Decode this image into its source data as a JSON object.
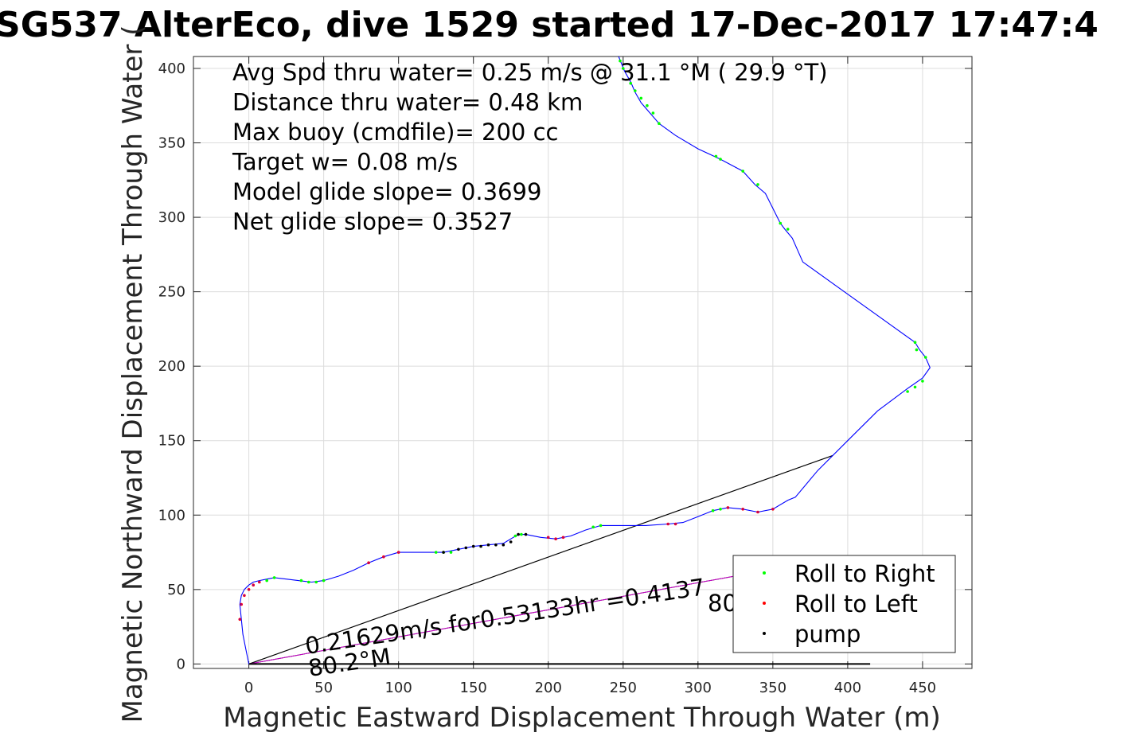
{
  "chart_data": {
    "type": "line",
    "title": "SG537 AlterEco, dive 1529 started 17-Dec-2017 17:47:4",
    "xlabel": "Magnetic Eastward Displacement Through Water (m)",
    "ylabel": "Magnetic Northward Displacement Through Water (",
    "xlim": [
      -37,
      483
    ],
    "ylim": [
      -3,
      408
    ],
    "xticks": [
      0,
      50,
      100,
      150,
      200,
      250,
      300,
      350,
      400,
      450
    ],
    "yticks": [
      0,
      50,
      100,
      150,
      200,
      250,
      300,
      350,
      400
    ],
    "grid": true,
    "text_stats": [
      "Avg Spd thru water=  0.25 m/s @  31.1 °M ( 29.9 °T)",
      "Distance thru water=  0.48 km",
      "Max buoy (cmdfile)= 200 cc",
      "Target w= 0.08 m/s",
      "Model glide slope= 0.3699",
      "Net glide slope= 0.3527"
    ],
    "current_annotation": {
      "text": "0.21629m/s for0.53133hr =0.4137",
      "heading_text": "80.2°M",
      "heading_text_right": "80"
    },
    "legend": {
      "position": "lower-right",
      "entries": [
        {
          "label": "Roll to Right",
          "color": "#00ff00"
        },
        {
          "label": "Roll to Left",
          "color": "#ff0000"
        },
        {
          "label": "pump",
          "color": "#000000"
        }
      ]
    },
    "track": {
      "color": "#0000ff",
      "x": [
        0,
        -2,
        -4,
        -5,
        -6,
        -5,
        -3,
        0,
        3,
        7,
        12,
        17,
        25,
        33,
        42,
        50,
        60,
        70,
        80,
        90,
        100,
        110,
        120,
        130,
        140,
        150,
        160,
        170,
        175,
        180,
        185,
        195,
        205,
        215,
        225,
        235,
        250,
        265,
        280,
        290,
        300,
        310,
        320,
        330,
        340,
        350,
        360,
        365,
        380,
        400,
        420,
        440,
        450,
        455,
        452,
        448,
        445,
        420,
        395,
        370,
        363,
        358,
        355,
        345,
        338,
        330,
        315,
        300,
        285,
        274,
        268,
        262,
        258,
        255,
        251,
        247
      ],
      "y": [
        0,
        10,
        20,
        30,
        40,
        46,
        50,
        53,
        55,
        56,
        57,
        58,
        57,
        56,
        55,
        56,
        59,
        63,
        68,
        72,
        75,
        75,
        75,
        75,
        77,
        79,
        80,
        81,
        84,
        87,
        87,
        85,
        84,
        86,
        90,
        93,
        93,
        93,
        94,
        95,
        99,
        103,
        105,
        104,
        102,
        104,
        110,
        112,
        130,
        150,
        170,
        185,
        192,
        199,
        206,
        211,
        216,
        234,
        252,
        270,
        286,
        292,
        296,
        316,
        322,
        331,
        339,
        346,
        355,
        363,
        370,
        377,
        384,
        391,
        398,
        408
      ]
    },
    "pump_points": {
      "x": [
        130,
        140,
        145,
        150,
        155,
        160,
        165,
        170,
        175,
        180,
        185
      ],
      "y": [
        75,
        77,
        78,
        79,
        79,
        80,
        80,
        80,
        82,
        87,
        87
      ]
    },
    "left_points": {
      "x": [
        -6,
        -5,
        -3,
        0,
        3,
        7,
        80,
        90,
        100,
        200,
        205,
        210,
        280,
        285,
        320,
        330,
        340,
        350
      ],
      "y": [
        30,
        40,
        46,
        50,
        53,
        55,
        68,
        72,
        75,
        85,
        84,
        85,
        94,
        94,
        105,
        104,
        102,
        104
      ]
    },
    "right_points": {
      "x": [
        12,
        17,
        35,
        40,
        45,
        50,
        125,
        130,
        135,
        178,
        182,
        230,
        235,
        310,
        315,
        440,
        445,
        450,
        452,
        446,
        445,
        355,
        360,
        340,
        330,
        315,
        312,
        274,
        270,
        266,
        262,
        258,
        255,
        250,
        248
      ],
      "y": [
        56,
        58,
        56,
        55,
        55,
        56,
        75,
        75,
        75,
        86,
        87,
        92,
        93,
        103,
        104,
        183,
        186,
        190,
        206,
        211,
        216,
        296,
        292,
        322,
        331,
        339,
        341,
        363,
        370,
        375,
        380,
        385,
        390,
        400,
        405
      ]
    },
    "current_line": {
      "x": [
        0,
        390
      ],
      "y": [
        0,
        140
      ]
    },
    "glide_line": {
      "x": [
        0,
        330
      ],
      "y": [
        0,
        60
      ]
    },
    "bottom_line": {
      "x": [
        0,
        415
      ],
      "y": [
        0,
        0
      ]
    }
  }
}
